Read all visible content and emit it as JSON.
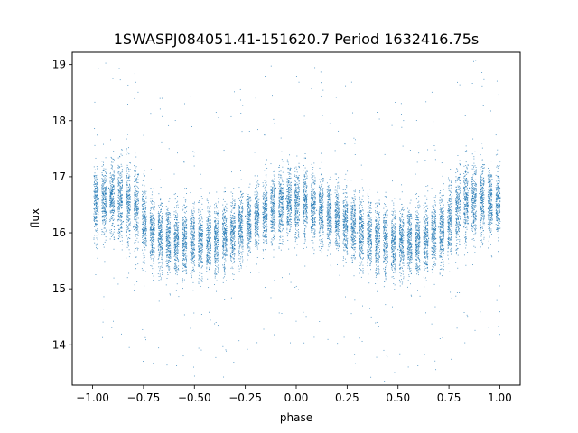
{
  "chart_data": {
    "type": "scatter",
    "title": "1SWASPJ084051.41-151620.7 Period 1632416.75s",
    "xlabel": "phase",
    "ylabel": "flux",
    "xlim": [
      -1.1,
      1.1
    ],
    "ylim": [
      13.28,
      19.22
    ],
    "xticks": [
      -1.0,
      -0.75,
      -0.5,
      -0.25,
      0.0,
      0.25,
      0.5,
      0.75,
      1.0
    ],
    "xtick_labels": [
      "−1.00",
      "−0.75",
      "−0.50",
      "−0.25",
      "0.00",
      "0.25",
      "0.50",
      "0.75",
      "1.00"
    ],
    "yticks": [
      14,
      15,
      16,
      17,
      18,
      19
    ],
    "ytick_labels": [
      "14",
      "15",
      "16",
      "17",
      "18",
      "19"
    ],
    "grid": false,
    "marker_color": "#1f77b4",
    "folded_light_curve": {
      "description_phase": [
        0.0,
        0.05,
        0.1,
        0.15,
        0.2,
        0.25,
        0.3,
        0.35,
        0.4,
        0.45,
        0.5,
        0.55,
        0.6,
        0.65,
        0.7,
        0.75,
        0.8,
        0.85,
        0.9,
        0.95,
        1.0
      ],
      "median_flux": [
        16.55,
        16.55,
        16.45,
        16.35,
        16.25,
        16.15,
        16.05,
        15.95,
        15.9,
        15.85,
        15.85,
        15.85,
        15.85,
        15.9,
        16.0,
        16.2,
        16.5,
        16.6,
        16.6,
        16.55,
        16.55
      ],
      "scatter_half_range": [
        0.7,
        0.7,
        0.7,
        0.65,
        0.65,
        0.65,
        0.7,
        0.7,
        0.7,
        0.7,
        0.7,
        0.7,
        0.7,
        0.7,
        0.7,
        0.75,
        0.8,
        0.8,
        0.75,
        0.7,
        0.7
      ],
      "mirrored_to_negative_phase": true
    },
    "series": [
      {
        "points": [
          [
            -0.97,
            16.6
          ],
          [
            -0.95,
            16.3
          ],
          [
            -0.92,
            16.8
          ],
          [
            -0.88,
            16.4
          ],
          [
            -0.85,
            16.2
          ],
          [
            -0.8,
            16.1
          ],
          [
            -0.75,
            16.0
          ],
          [
            -0.7,
            15.9
          ],
          [
            -0.65,
            15.8
          ],
          [
            -0.6,
            15.8
          ],
          [
            -0.55,
            15.7
          ],
          [
            -0.5,
            15.7
          ],
          [
            -0.45,
            15.8
          ],
          [
            -0.4,
            15.9
          ],
          [
            -0.35,
            16.0
          ],
          [
            -0.3,
            16.1
          ],
          [
            -0.25,
            16.3
          ],
          [
            -0.2,
            16.6
          ],
          [
            -0.15,
            16.7
          ],
          [
            -0.1,
            16.8
          ],
          [
            -0.05,
            16.6
          ],
          [
            0.0,
            16.5
          ],
          [
            0.05,
            16.6
          ],
          [
            0.1,
            16.4
          ],
          [
            0.15,
            16.3
          ],
          [
            0.2,
            16.2
          ],
          [
            0.25,
            16.1
          ],
          [
            0.3,
            16.0
          ],
          [
            0.35,
            15.9
          ],
          [
            0.4,
            15.8
          ],
          [
            0.45,
            15.8
          ],
          [
            0.5,
            15.7
          ],
          [
            0.55,
            15.7
          ],
          [
            0.6,
            15.8
          ],
          [
            0.65,
            15.9
          ],
          [
            0.7,
            16.1
          ],
          [
            0.75,
            16.4
          ],
          [
            0.8,
            16.6
          ],
          [
            0.85,
            16.8
          ],
          [
            0.9,
            16.7
          ],
          [
            0.95,
            16.6
          ],
          [
            1.0,
            16.5
          ]
        ]
      }
    ]
  }
}
